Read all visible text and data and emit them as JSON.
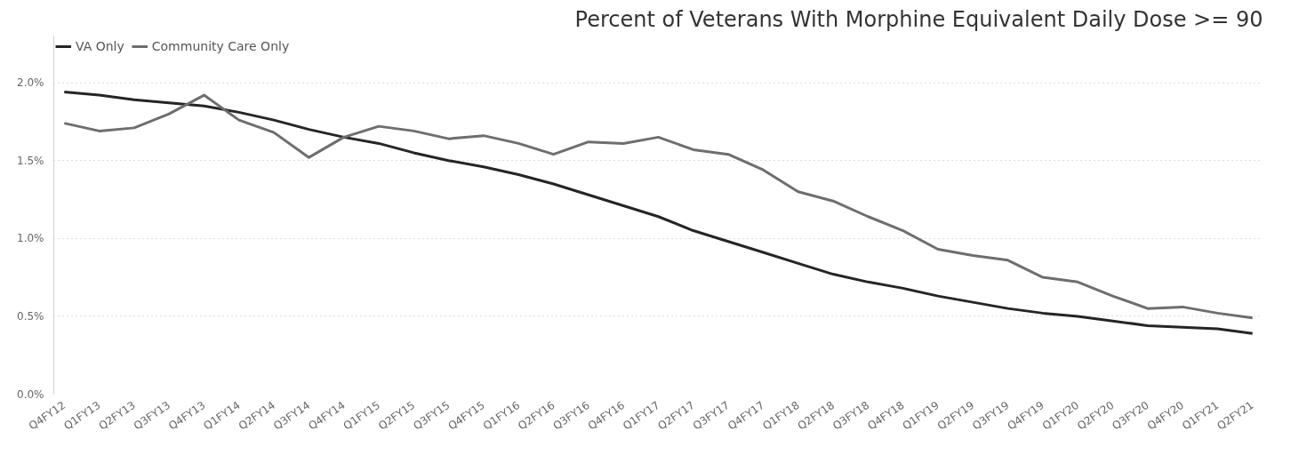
{
  "chart_data": {
    "type": "line",
    "title": "Percent of Veterans With Morphine Equivalent Daily Dose >= 90",
    "categories": [
      "Q4FY12",
      "Q1FY13",
      "Q2FY13",
      "Q3FY13",
      "Q4FY13",
      "Q1FY14",
      "Q2FY14",
      "Q3FY14",
      "Q4FY14",
      "Q1FY15",
      "Q2FY15",
      "Q3FY15",
      "Q4FY15",
      "Q1FY16",
      "Q2FY16",
      "Q3FY16",
      "Q4FY16",
      "Q1FY17",
      "Q2FY17",
      "Q3FY17",
      "Q4FY17",
      "Q1FY18",
      "Q2FY18",
      "Q3FY18",
      "Q4FY18",
      "Q1FY19",
      "Q2FY19",
      "Q3FY19",
      "Q4FY19",
      "Q1FY20",
      "Q2FY20",
      "Q3FY20",
      "Q4FY20",
      "Q1FY21",
      "Q2FY21"
    ],
    "series": [
      {
        "name": "VA Only",
        "color": "#252525",
        "values": [
          1.94,
          1.92,
          1.89,
          1.87,
          1.85,
          1.81,
          1.76,
          1.7,
          1.65,
          1.61,
          1.55,
          1.5,
          1.46,
          1.41,
          1.35,
          1.28,
          1.21,
          1.14,
          1.05,
          0.98,
          0.91,
          0.84,
          0.77,
          0.72,
          0.68,
          0.63,
          0.59,
          0.55,
          0.52,
          0.5,
          0.47,
          0.44,
          0.43,
          0.42,
          0.39
        ]
      },
      {
        "name": "Community Care Only",
        "color": "#6e6e6e",
        "values": [
          1.74,
          1.69,
          1.71,
          1.8,
          1.92,
          1.76,
          1.68,
          1.52,
          1.65,
          1.72,
          1.69,
          1.64,
          1.66,
          1.61,
          1.54,
          1.62,
          1.61,
          1.65,
          1.57,
          1.54,
          1.44,
          1.3,
          1.24,
          1.14,
          1.05,
          0.93,
          0.89,
          0.86,
          0.75,
          0.72,
          0.63,
          0.55,
          0.56,
          0.52,
          0.49
        ]
      }
    ],
    "ylim": [
      0,
      2.3
    ],
    "yticks": [
      {
        "value": 0,
        "label": "0.0%"
      },
      {
        "value": 0.5,
        "label": "0.5%"
      },
      {
        "value": 1.0,
        "label": "1.0%"
      },
      {
        "value": 1.5,
        "label": "1.5%"
      },
      {
        "value": 2.0,
        "label": "2.0%"
      }
    ],
    "grid": "y",
    "legend": "top left",
    "line_style": "solid"
  }
}
